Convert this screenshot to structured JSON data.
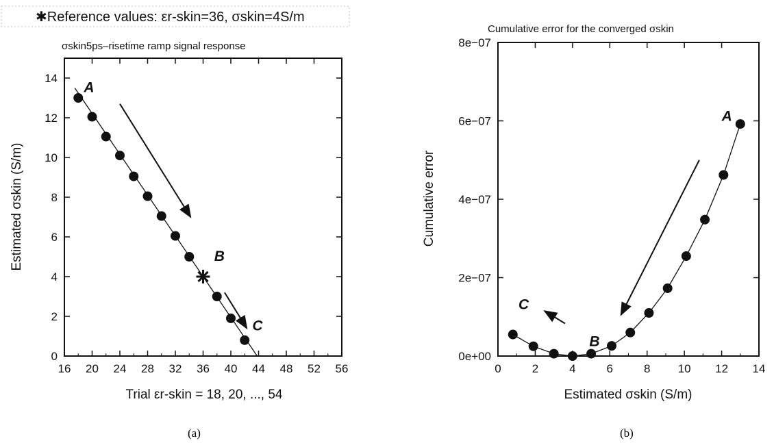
{
  "chart_data": [
    {
      "type": "scatter",
      "title": "σskin5ps–risetime ramp signal response",
      "legend": "✱Reference values: εr-skin=36, σskin=4S/m",
      "xlabel": "Trial εr-skin = 18, 20, ..., 54",
      "ylabel": "Estimated σskin (S/m)",
      "xlim": [
        16,
        56
      ],
      "ylim": [
        0,
        15
      ],
      "xticks": [
        "16",
        "20",
        "24",
        "28",
        "32",
        "36",
        "40",
        "44",
        "48",
        "52",
        "56"
      ],
      "yticks": [
        "0",
        "2",
        "4",
        "6",
        "8",
        "10",
        "12",
        "14"
      ],
      "series": [
        {
          "x": [
            18,
            20,
            22,
            24,
            26,
            28,
            30,
            32,
            34,
            36,
            38,
            40,
            42
          ],
          "y": [
            13.0,
            12.05,
            11.05,
            10.1,
            9.05,
            8.05,
            7.05,
            6.05,
            5.0,
            4.0,
            3.0,
            1.9,
            0.8
          ]
        }
      ],
      "fit_line": {
        "x": [
          17.5,
          43.8
        ],
        "y": [
          13.5,
          0
        ]
      },
      "reference_point": {
        "x": 36,
        "y": 4.0
      },
      "annotations": [
        {
          "text": "A",
          "x": 18.8,
          "y": 13.3
        },
        {
          "text": "B",
          "x": 37.6,
          "y": 4.8
        },
        {
          "text": "C",
          "x": 43.1,
          "y": 1.3
        }
      ],
      "arrows": [
        {
          "from": [
            24,
            12.7
          ],
          "to": [
            34.2,
            7.0
          ]
        },
        {
          "from": [
            39.1,
            3.2
          ],
          "to": [
            42.3,
            1.4
          ]
        }
      ],
      "caption": "(a)"
    },
    {
      "type": "scatter",
      "title": "Cumulative error for the converged σskin",
      "xlabel": "Estimated σskin (S/m)",
      "ylabel": "Cumulative error",
      "xlim": [
        0,
        14
      ],
      "ylim": [
        0,
        8e-07
      ],
      "xticks": [
        "0",
        "2",
        "4",
        "6",
        "8",
        "10",
        "12",
        "14"
      ],
      "yticks": [
        "0e+00",
        "2e−07",
        "4e−07",
        "6e−07",
        "8e−07"
      ],
      "series": [
        {
          "x": [
            0.8,
            1.9,
            3.0,
            4.0,
            5.0,
            6.1,
            7.1,
            8.1,
            9.1,
            10.1,
            11.1,
            12.1,
            13.0
          ],
          "y": [
            5.5e-08,
            2.5e-08,
            6e-09,
            0,
            6e-09,
            2.6e-08,
            6e-08,
            1.1e-07,
            1.73e-07,
            2.55e-07,
            3.48e-07,
            4.62e-07,
            5.92e-07
          ]
        }
      ],
      "annotations": [
        {
          "text": "A",
          "x": 12.0,
          "y": 6e-07
        },
        {
          "text": "B",
          "x": 4.9,
          "y": 2.5e-08
        },
        {
          "text": "C",
          "x": 1.1,
          "y": 1.2e-07
        }
      ],
      "arrows": [
        {
          "from": [
            10.8,
            5e-07
          ],
          "to": [
            6.6,
            1.05e-07
          ]
        },
        {
          "from": [
            3.6,
            8.3e-08
          ],
          "to": [
            2.5,
            1.15e-07
          ]
        }
      ],
      "caption": "(b)"
    }
  ]
}
